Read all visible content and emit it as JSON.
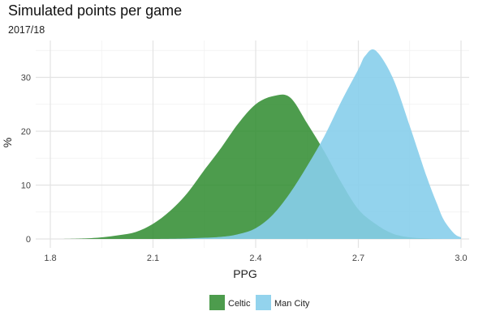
{
  "chart_data": {
    "type": "area",
    "title": "Simulated points per game",
    "subtitle": "2017/18",
    "xlabel": "PPG",
    "ylabel": "%",
    "xlim": [
      1.8,
      3.0
    ],
    "ylim": [
      0,
      36
    ],
    "xticks": [
      1.8,
      2.1,
      2.4,
      2.7,
      3.0
    ],
    "xtick_labels": [
      "1.8",
      "2.1",
      "2.4",
      "2.7",
      "3.0"
    ],
    "yticks": [
      0,
      10,
      20,
      30
    ],
    "ytick_labels": [
      "0",
      "10",
      "20",
      "30"
    ],
    "grid": true,
    "legend_position": "bottom",
    "series": [
      {
        "name": "Celtic",
        "color": "#2e8b2e",
        "x": [
          1.83,
          1.9,
          1.95,
          2.0,
          2.05,
          2.1,
          2.15,
          2.2,
          2.25,
          2.3,
          2.35,
          2.4,
          2.45,
          2.5,
          2.55,
          2.6,
          2.65,
          2.7,
          2.75,
          2.8,
          2.85,
          2.9,
          2.95
        ],
        "values": [
          0,
          0.1,
          0.3,
          0.7,
          1.3,
          2.8,
          5.2,
          8.5,
          12.8,
          17.0,
          21.5,
          25.0,
          26.5,
          26.3,
          21.5,
          16.3,
          10.5,
          5.5,
          2.8,
          1.0,
          0.3,
          0.1,
          0
        ]
      },
      {
        "name": "Man City",
        "color": "#87ceeb",
        "x": [
          2.1,
          2.2,
          2.3,
          2.35,
          2.4,
          2.45,
          2.5,
          2.55,
          2.6,
          2.65,
          2.7,
          2.72,
          2.75,
          2.8,
          2.85,
          2.9,
          2.93,
          2.95,
          2.98,
          3.0
        ],
        "values": [
          0,
          0.1,
          0.4,
          0.9,
          2.0,
          4.5,
          8.5,
          13.5,
          19.0,
          25.5,
          31.5,
          34.0,
          35.0,
          30.0,
          21.0,
          11.5,
          6.5,
          3.5,
          1.0,
          0.3
        ]
      }
    ]
  }
}
